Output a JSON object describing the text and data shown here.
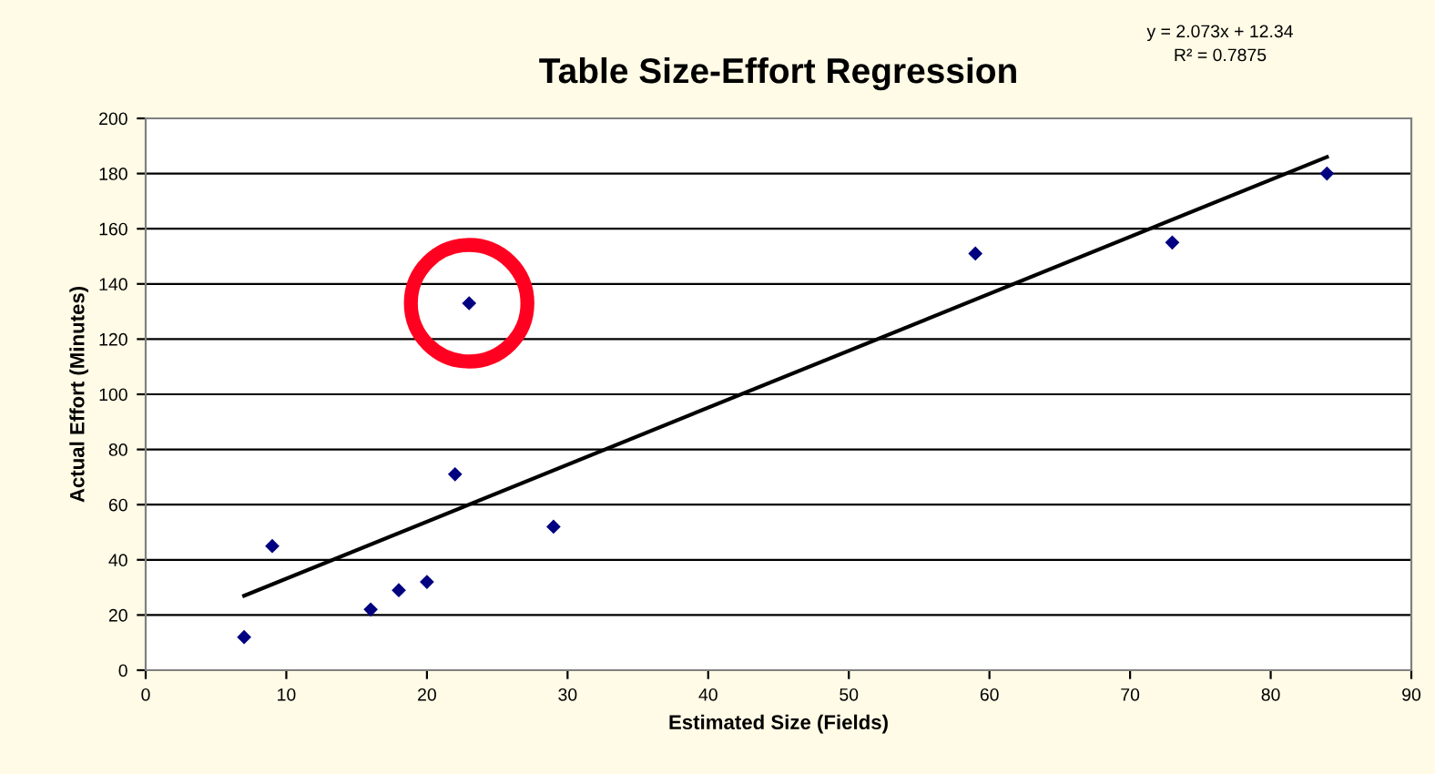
{
  "chart_data": {
    "type": "scatter",
    "title": "Table Size-Effort Regression",
    "xlabel": "Estimated Size (Fields)",
    "ylabel": "Actual Effort (Minutes)",
    "series": [
      {
        "color": "#000080",
        "x": [
          7,
          9,
          16,
          18,
          20,
          22,
          23,
          29,
          59,
          73,
          84
        ],
        "values": [
          12,
          45,
          22,
          29,
          32,
          71,
          133,
          52,
          151,
          155,
          180
        ],
        "marker": "diamond"
      },
      {
        "type": "line",
        "color": "#000000",
        "x": [
          7,
          84
        ],
        "values": [
          27,
          186
        ],
        "marker": "none"
      }
    ],
    "annotations": [
      "y = 2.073x + 12.34",
      "R² = 0.7875"
    ],
    "xlim": [
      0,
      90
    ],
    "xticks": [
      0,
      10,
      20,
      30,
      40,
      50,
      60,
      70,
      80,
      90
    ],
    "ylim": [
      0,
      200
    ],
    "yticks": [
      0,
      20,
      40,
      60,
      80,
      100,
      120,
      140,
      160,
      180,
      200
    ],
    "grid": "y",
    "legend": false
  }
}
